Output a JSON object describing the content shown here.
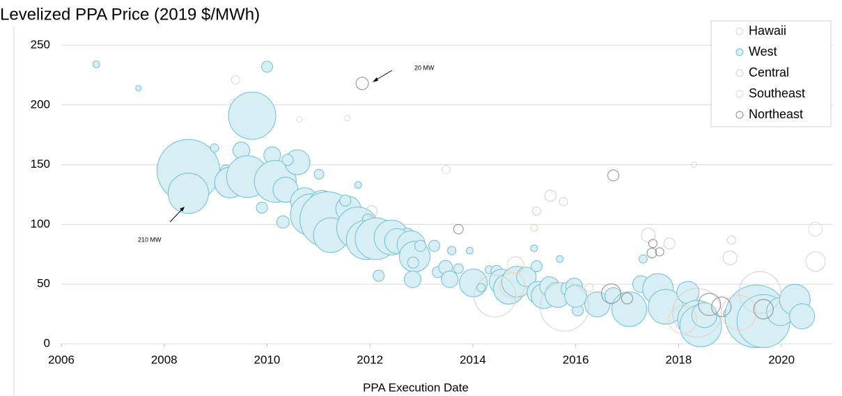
{
  "chart_data": {
    "type": "bubble",
    "title": "Levelized PPA Price (2019 $/MWh)",
    "x_label": "PPA Execution Date",
    "annotations": [
      "20 MW",
      "210 MW"
    ],
    "xlim": [
      2006,
      2021
    ],
    "xticks": [
      2006,
      2008,
      2010,
      2012,
      2014,
      2016,
      2018,
      2020
    ],
    "ylim": [
      0,
      250
    ],
    "yticks": [
      0,
      50,
      100,
      150,
      200,
      250
    ],
    "grid": true,
    "legend": "top-right",
    "series": [
      {
        "name": "Hawaii",
        "color": "#d9d9d9",
        "x": [
          2009.39,
          2009.35,
          2010.63,
          2011.56,
          2013.48,
          2018.3,
          2020.66
        ],
        "values": [
          221,
          202,
          188,
          189,
          146,
          150,
          96
        ],
        "sizes": [
          9,
          6,
          4,
          4,
          9,
          4,
          25
        ]
      },
      {
        "name": "West",
        "color": "#6cc0d4",
        "fill": "#d6eef4",
        "x": [
          2006.68,
          2007.5,
          2008.47,
          2008.47,
          2008.98,
          2010,
          2009.71,
          2009.5,
          2009.2,
          2009.28,
          2009.62,
          2010.1,
          2010.16,
          2010.36,
          2010.59,
          2010.4,
          2009.9,
          2010.31,
          2011.01,
          2010.73,
          2010.86,
          2011.07,
          2011.18,
          2011.24,
          2011.58,
          2011.52,
          2011.76,
          2011.77,
          2011.96,
          2011.92,
          2012.02,
          2012.12,
          2012.17,
          2012.42,
          2012.73,
          2012.53,
          2012.8,
          2012.87,
          2012.98,
          2012.84,
          2012.83,
          2013.25,
          2013.32,
          2013.47,
          2013.55,
          2013.59,
          2013.72,
          2013.94,
          2014.01,
          2014.16,
          2014.32,
          2014.46,
          2014.56,
          2014.7,
          2014.81,
          2014.86,
          2015.04,
          2015.19,
          2015.24,
          2015.27,
          2015.38,
          2015.49,
          2015.65,
          2015.69,
          2015.85,
          2015.97,
          2016.04,
          2016.0,
          2016.42,
          2016.73,
          2017.04,
          2017.27,
          2017.31,
          2017.6,
          2017.75,
          2018.18,
          2018.36,
          2018.43,
          2018.5,
          2018.98,
          2019.51,
          2019.65,
          2019.98,
          2020.26,
          2020.4
        ],
        "values": [
          234,
          214,
          145,
          126,
          164,
          232,
          191,
          162,
          145,
          135,
          140,
          158,
          136,
          129,
          152,
          154,
          114,
          102,
          142,
          119,
          108,
          118,
          104,
          91,
          113,
          120,
          97,
          133,
          104,
          87,
          81,
          88,
          57,
          89,
          91,
          86,
          83,
          73,
          82,
          68,
          54,
          82,
          60,
          64,
          54,
          78,
          63,
          78,
          51,
          47,
          62,
          61,
          52,
          46,
          59,
          52,
          56,
          80,
          65,
          43,
          40,
          48,
          41,
          71,
          46,
          48,
          28,
          40,
          33,
          40,
          29,
          50,
          71,
          46,
          31,
          43,
          20,
          15,
          24,
          25,
          23,
          19,
          27,
          37,
          23
        ],
        "sizes": [
          6,
          4,
          506,
          210,
          9,
          16,
          289,
          36,
          16,
          121,
          225,
          36,
          225,
          81,
          81,
          16,
          16,
          20,
          12,
          100,
          225,
          81,
          400,
          156,
          81,
          16,
          225,
          6,
          16,
          196,
          16,
          225,
          16,
          156,
          25,
          81,
          100,
          121,
          16,
          16,
          36,
          16,
          16,
          25,
          36,
          9,
          12,
          6,
          100,
          9,
          9,
          16,
          81,
          121,
          16,
          121,
          49,
          6,
          16,
          64,
          81,
          49,
          81,
          6,
          25,
          36,
          16,
          64,
          81,
          36,
          156,
          36,
          9,
          121,
          156,
          64,
          196,
          225,
          81,
          16,
          506,
          361,
          100,
          121,
          81
        ]
      },
      {
        "name": "Central",
        "color": "#d0d0d0",
        "x": [
          2012.03,
          2015.24,
          2015.51,
          2015.76,
          2017.41,
          2017.82,
          2019.03,
          2019.0,
          2020.66,
          2014.43,
          2015.78,
          2019.58,
          2018.36
        ],
        "values": [
          111,
          111,
          124,
          119,
          91,
          84,
          87,
          72,
          69,
          40,
          31,
          43,
          26
        ],
        "sizes": [
          16,
          9,
          16,
          9,
          25,
          16,
          9,
          25,
          49,
          225,
          306,
          225,
          306
        ]
      },
      {
        "name": "Southeast",
        "color": "#f2cfb3",
        "x": [
          2014.83,
          2015.19,
          2016.26,
          2018.08,
          2019.17,
          2014.77
        ],
        "values": [
          66,
          97,
          47,
          20,
          26,
          49
        ],
        "sizes": [
          36,
          6,
          9,
          100,
          156,
          81
        ]
      },
      {
        "name": "Northeast",
        "color": "#8c8c8c",
        "x": [
          2011.85,
          2016.73,
          2013.72,
          2017.48,
          2017.5,
          2016.69,
          2017.0,
          2018.83,
          2019.65,
          2018.6,
          2017.63
        ],
        "values": [
          218,
          141,
          96,
          76,
          84,
          42,
          38,
          31,
          29,
          33,
          77
        ],
        "sizes": [
          20,
          16,
          12,
          12,
          9,
          49,
          16,
          49,
          49,
          64,
          9
        ]
      }
    ]
  }
}
